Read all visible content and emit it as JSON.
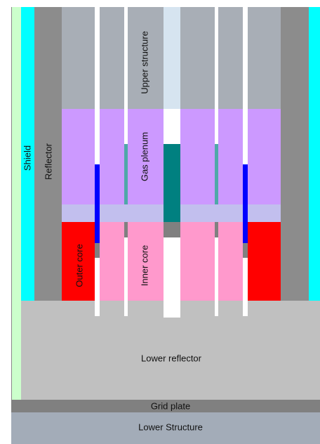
{
  "labels": {
    "shield": "Shield",
    "reflector": "Reflector",
    "upper_structure": "Upper structure",
    "gas_plenum": "Gas plenum",
    "outer_core": "Outer core",
    "inner_core": "Inner core",
    "lower_reflector": "Lower reflector",
    "grid_plate": "Grid plate",
    "lower_structure": "Lower Structure"
  },
  "colors": {
    "shield_outer": "#ccffcc",
    "shield": "#00ffff",
    "reflector": "#8c8c8c",
    "upper_structure": "#a8aeb6",
    "upper_structure_light": "#d6e4f0",
    "gas_plenum": "#cc99ff",
    "plenum_band": "#c2bfee",
    "outer_core": "#ff0000",
    "inner_core": "#ff99cc",
    "lower_reflector": "#c0c0c0",
    "grid_plate": "#808080",
    "lower_structure": "#a3acb8",
    "control_rod": "#008080",
    "blue_rod": "#0000ff",
    "channel": "#ffffff",
    "gap": "#808080"
  }
}
